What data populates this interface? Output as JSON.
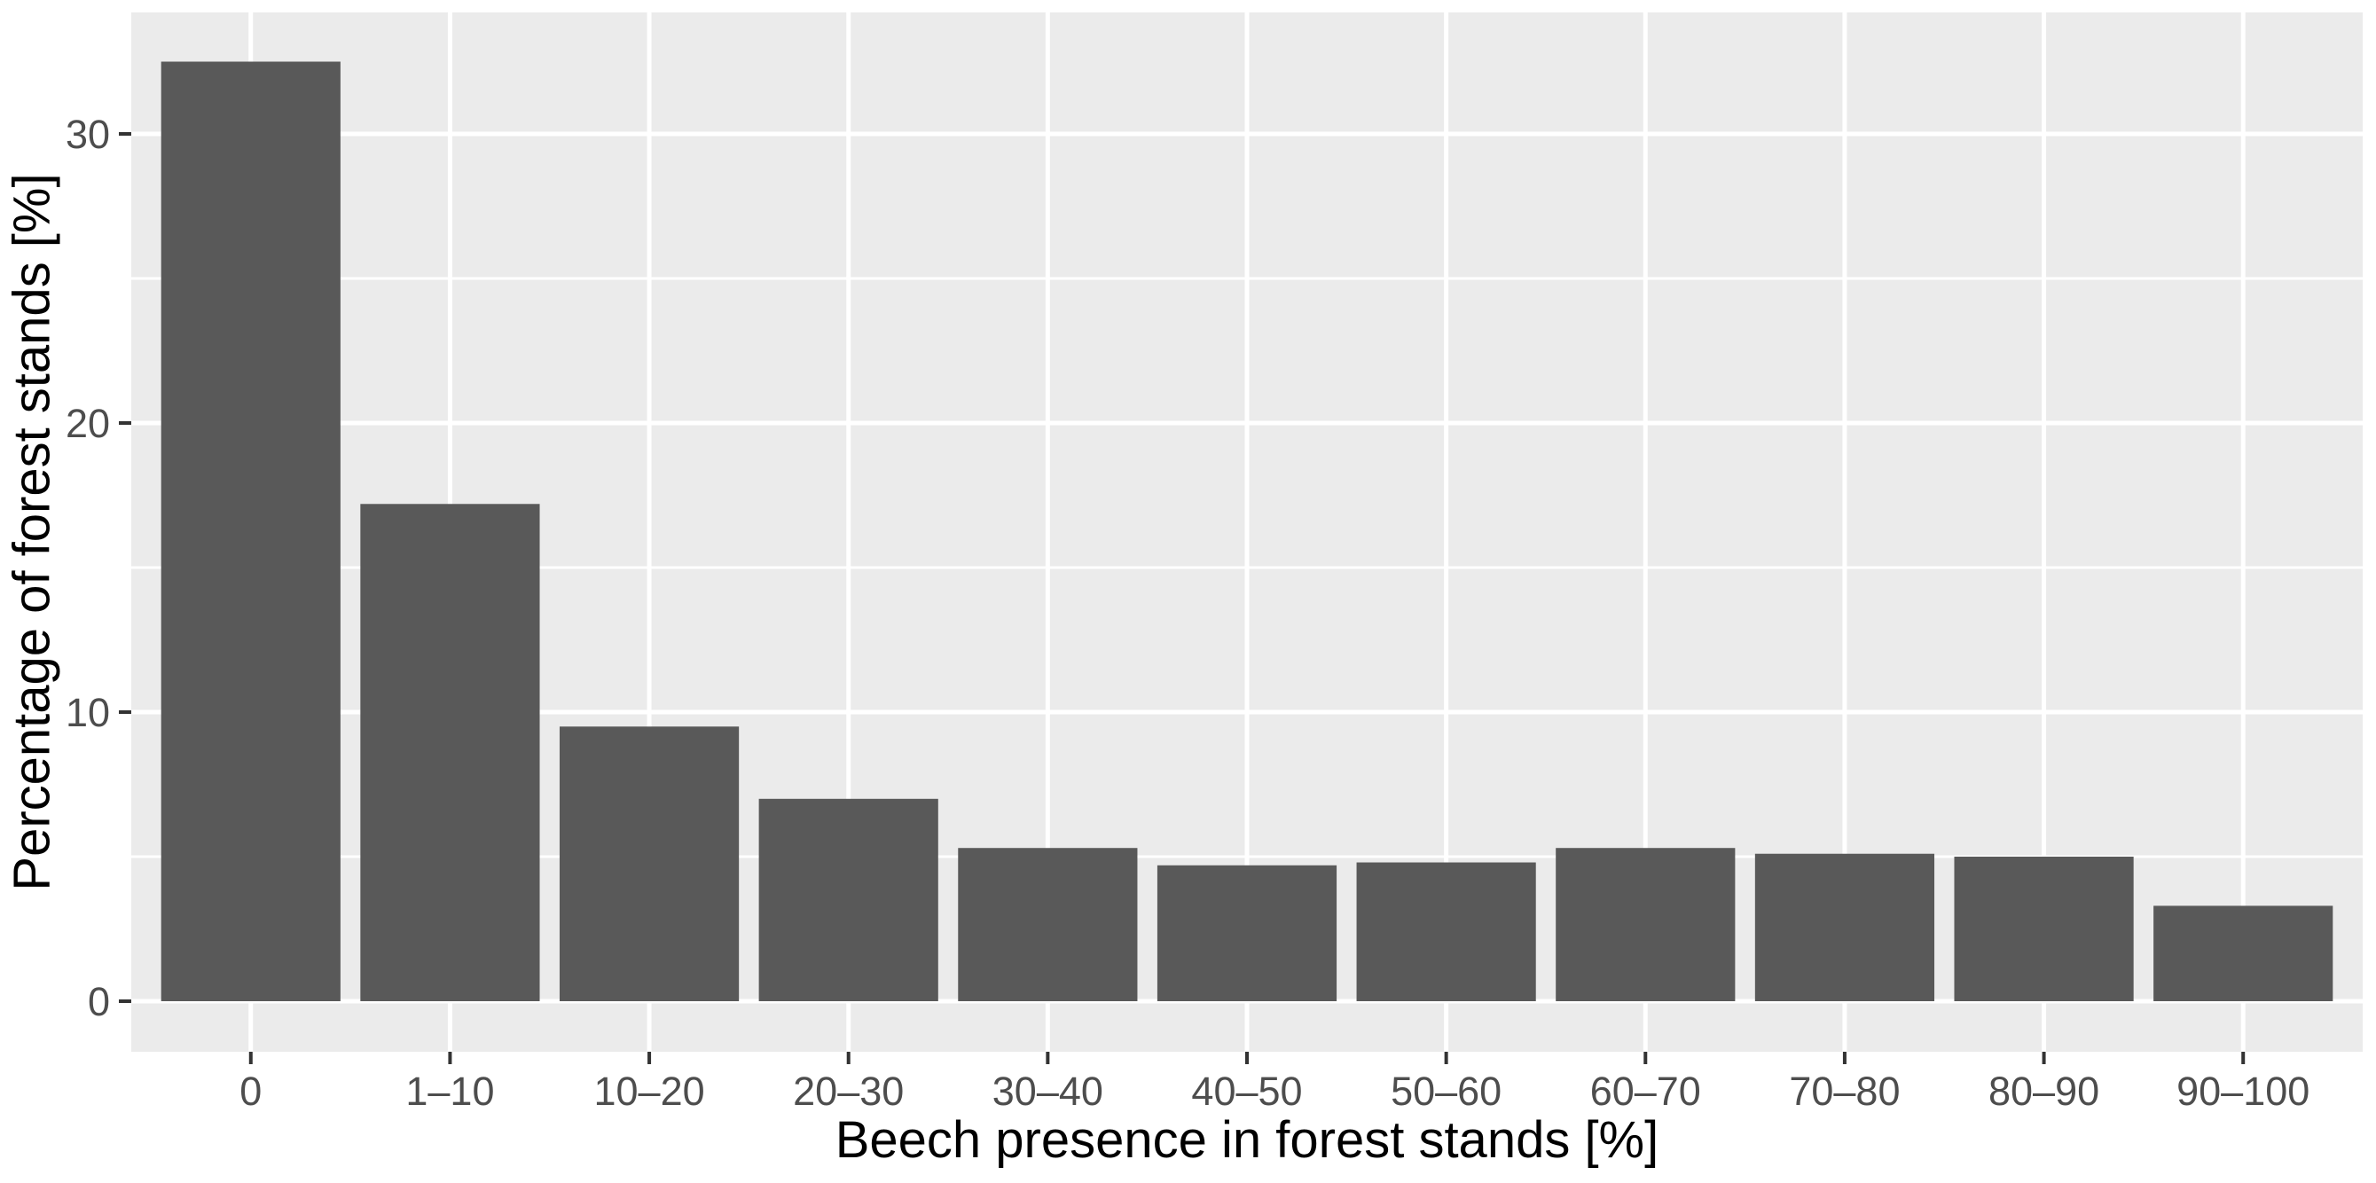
{
  "chart_data": {
    "type": "bar",
    "title": "",
    "xlabel": "Beech presence in forest stands [%]",
    "ylabel": "Percentage of forest stands [%]",
    "categories": [
      "0",
      "1–10",
      "10–20",
      "20–30",
      "30–40",
      "40–50",
      "50–60",
      "60–70",
      "70–80",
      "80–90",
      "90–100"
    ],
    "values": [
      32.5,
      17.2,
      9.5,
      7.0,
      5.3,
      4.7,
      4.8,
      5.3,
      5.1,
      5.0,
      3.3
    ],
    "yticks": [
      0,
      10,
      20,
      30
    ],
    "y_minor_gridlines": [
      5,
      15,
      25
    ],
    "ylim": [
      0,
      34.2
    ],
    "bar_width_fraction": 0.9,
    "grid": "white major and minor horizontal lines, white vertical lines at category centers, on grey panel",
    "legend": "none",
    "colors": {
      "bar_fill": "#595959",
      "panel_background": "#ebebeb",
      "gridline": "#ffffff",
      "tick_label": "#4d4d4d",
      "tick_mark": "#333333",
      "axis_title": "#000000",
      "page_background": "#ffffff"
    }
  }
}
